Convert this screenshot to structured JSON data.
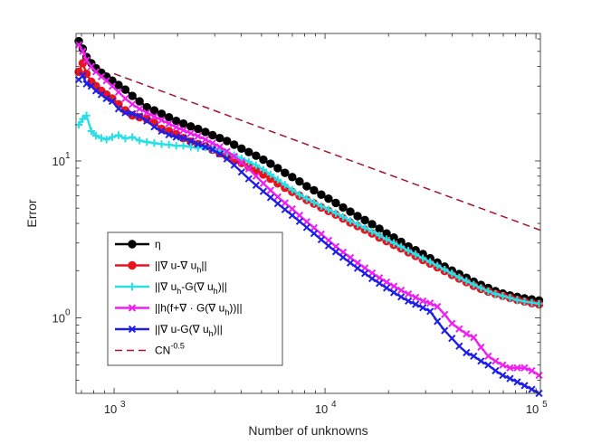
{
  "chart_data": {
    "type": "line",
    "xscale": "log",
    "yscale": "log",
    "xlabel": "Number of unknowns",
    "ylabel": "Error",
    "xlim": [
      660,
      105000
    ],
    "ylim": [
      0.33,
      65
    ],
    "xticks": [
      {
        "value": 1000,
        "base": "10",
        "exp": "3"
      },
      {
        "value": 10000,
        "base": "10",
        "exp": "4"
      },
      {
        "value": 100000,
        "base": "10",
        "exp": "5"
      }
    ],
    "yticks": [
      {
        "value": 1,
        "base": "10",
        "exp": "0"
      },
      {
        "value": 10,
        "base": "10",
        "exp": "1"
      }
    ],
    "series": [
      {
        "name": "η",
        "color": "#000000",
        "marker": "circle",
        "dash": false,
        "x": [
          680,
          710,
          740,
          780,
          820,
          870,
          920,
          980,
          1050,
          1130,
          1220,
          1320,
          1430,
          1550,
          1680,
          1820,
          1970,
          2130,
          2310,
          2500,
          2710,
          2930,
          3170,
          3430,
          3710,
          4020,
          4350,
          4710,
          5100,
          5520,
          5970,
          6460,
          6990,
          7570,
          8190,
          8870,
          9600,
          10390,
          11250,
          12180,
          13180,
          14270,
          15450,
          16720,
          18100,
          19590,
          21200,
          22950,
          24840,
          26890,
          29110,
          31510,
          34110,
          36920,
          39970,
          43270,
          46840,
          50700,
          54880,
          59410,
          64310,
          69610,
          75350,
          81570,
          88300,
          95580,
          103470
        ],
        "y": [
          58,
          52,
          46,
          42,
          39,
          36.5,
          34.5,
          32.5,
          30.5,
          28.5,
          26,
          24,
          22,
          21,
          20,
          19,
          18,
          17.3,
          16.6,
          16,
          15.3,
          14.6,
          14,
          13.4,
          12.7,
          12,
          11.4,
          10.8,
          10.2,
          9.6,
          9,
          8.4,
          7.9,
          7.4,
          6.9,
          6.5,
          6.1,
          5.75,
          5.4,
          5.05,
          4.75,
          4.45,
          4.2,
          3.95,
          3.7,
          3.45,
          3.25,
          3.05,
          2.85,
          2.7,
          2.55,
          2.4,
          2.25,
          2.12,
          2,
          1.9,
          1.8,
          1.7,
          1.62,
          1.55,
          1.48,
          1.43,
          1.39,
          1.36,
          1.33,
          1.31,
          1.29
        ]
      },
      {
        "name": "||∇ u-∇ u_h||",
        "color": "#e8141e",
        "marker": "circle",
        "dash": false,
        "x": [
          680,
          710,
          740,
          780,
          820,
          870,
          920,
          980,
          1050,
          1130,
          1220,
          1320,
          1430,
          1550,
          1680,
          1820,
          1970,
          2130,
          2310,
          2500,
          2710,
          2930,
          3170,
          3430,
          3710,
          4020,
          4350,
          4710,
          5100,
          5520,
          5970,
          6460,
          6990,
          7570,
          8190,
          8870,
          9600,
          10390,
          11250,
          12180,
          13180,
          14270,
          15450,
          16720,
          18100,
          19590,
          21200,
          22950,
          24840,
          26890,
          29110,
          31510,
          34110,
          36920,
          39970,
          43270,
          46840,
          50700,
          54880,
          59410,
          64310,
          69610,
          75350,
          81570,
          88300,
          95580,
          103470
        ],
        "y": [
          37,
          42,
          36,
          32,
          30,
          28,
          26.5,
          25,
          23,
          21,
          19.5,
          19,
          18.5,
          17.5,
          16,
          15.5,
          14.8,
          14,
          13.3,
          12.8,
          12.4,
          11.8,
          11.2,
          10.7,
          10.2,
          9.7,
          9.2,
          8.7,
          8.2,
          7.7,
          7.2,
          6.75,
          6.35,
          6,
          5.65,
          5.35,
          5.05,
          4.8,
          4.55,
          4.3,
          4.05,
          3.85,
          3.65,
          3.45,
          3.25,
          3.08,
          2.92,
          2.77,
          2.62,
          2.48,
          2.34,
          2.22,
          2.1,
          1.99,
          1.88,
          1.78,
          1.69,
          1.6,
          1.53,
          1.47,
          1.42,
          1.38,
          1.34,
          1.3,
          1.27,
          1.24,
          1.22
        ]
      },
      {
        "name": "||∇ u_h-G(∇ u_h)||",
        "color": "#26e0e6",
        "marker": "plus",
        "dash": false,
        "x": [
          680,
          710,
          740,
          780,
          820,
          870,
          920,
          980,
          1050,
          1130,
          1220,
          1320,
          1430,
          1550,
          1680,
          1820,
          1970,
          2130,
          2310,
          2500,
          2710,
          2930,
          3170,
          3430,
          3710,
          4020,
          4350,
          4710,
          5100,
          5520,
          5970,
          6460,
          6990,
          7570,
          8190,
          8870,
          9600,
          10390,
          11250,
          12180,
          13180,
          14270,
          15450,
          16720,
          18100,
          19590,
          21200,
          22950,
          24840,
          26890,
          29110,
          31510,
          34110,
          36920,
          39970,
          43270,
          46840,
          50700,
          54880,
          59410,
          64310,
          69610,
          75350,
          81570,
          88300,
          95580,
          103470
        ],
        "y": [
          17,
          18.5,
          19.5,
          15.5,
          14.5,
          14,
          13.7,
          14.2,
          14.6,
          13.9,
          14.2,
          13.5,
          13.2,
          13,
          12.8,
          12.7,
          12.5,
          12.5,
          12.3,
          12.1,
          12.2,
          11.9,
          11.6,
          11.3,
          10.9,
          10.4,
          9.9,
          9.4,
          8.8,
          8.2,
          7.6,
          7.05,
          6.55,
          6.1,
          5.75,
          5.45,
          5.15,
          4.9,
          4.65,
          4.4,
          4.15,
          3.95,
          3.75,
          3.55,
          3.35,
          3.17,
          3,
          2.84,
          2.68,
          2.54,
          2.4,
          2.27,
          2.15,
          2.03,
          1.92,
          1.81,
          1.72,
          1.63,
          1.55,
          1.48,
          1.42,
          1.38,
          1.34,
          1.3,
          1.27,
          1.25,
          1.23
        ]
      },
      {
        "name": "||h(f+∇ · G(∇ u_h))||",
        "color": "#f01ef0",
        "marker": "x",
        "dash": false,
        "x": [
          680,
          710,
          740,
          780,
          820,
          870,
          920,
          980,
          1050,
          1130,
          1220,
          1320,
          1430,
          1550,
          1680,
          1820,
          1970,
          2130,
          2310,
          2500,
          2710,
          2930,
          3170,
          3430,
          3710,
          4020,
          4350,
          4710,
          5100,
          5520,
          5970,
          6460,
          6990,
          7570,
          8190,
          8870,
          9600,
          10390,
          11250,
          12180,
          13180,
          14270,
          15450,
          16720,
          18100,
          19590,
          21200,
          22950,
          24840,
          26890,
          29110,
          31510,
          34110,
          36920,
          39970,
          43270,
          46840,
          50700,
          54880,
          59410,
          64310,
          69610,
          75350,
          81570,
          88300,
          95580,
          103470
        ],
        "y": [
          55,
          50,
          44,
          40,
          37,
          34.5,
          32.5,
          30,
          27.5,
          25,
          23,
          21.5,
          20.3,
          19.2,
          18.2,
          17.3,
          16.4,
          15.7,
          15,
          14.4,
          13.7,
          13,
          12.3,
          11.5,
          10.7,
          9.8,
          8.9,
          8,
          7.2,
          6.5,
          5.9,
          5.4,
          4.95,
          4.5,
          4.1,
          3.75,
          3.42,
          3.12,
          2.85,
          2.62,
          2.42,
          2.24,
          2.08,
          1.93,
          1.8,
          1.69,
          1.59,
          1.5,
          1.42,
          1.35,
          1.28,
          1.24,
          1.18,
          1.05,
          0.92,
          0.85,
          0.79,
          0.75,
          0.65,
          0.57,
          0.53,
          0.5,
          0.48,
          0.48,
          0.48,
          0.46,
          0.43
        ]
      },
      {
        "name": "||∇ u-G(∇ u_h)||",
        "color": "#1e1ee6",
        "marker": "x",
        "dash": false,
        "x": [
          680,
          710,
          740,
          780,
          820,
          870,
          920,
          980,
          1050,
          1130,
          1220,
          1320,
          1430,
          1550,
          1680,
          1820,
          1970,
          2130,
          2310,
          2500,
          2710,
          2930,
          3170,
          3430,
          3710,
          4020,
          4350,
          4710,
          5100,
          5520,
          5970,
          6460,
          6990,
          7570,
          8190,
          8870,
          9600,
          10390,
          11250,
          12180,
          13180,
          14270,
          15450,
          16720,
          18100,
          19590,
          21200,
          22950,
          24840,
          26890,
          29110,
          31510,
          34110,
          36920,
          39970,
          43270,
          46840,
          50700,
          54880,
          59410,
          64310,
          69610,
          75350,
          81570,
          88300,
          95580,
          103470
        ],
        "y": [
          33,
          35,
          31,
          30,
          28,
          26.5,
          25,
          24,
          21.5,
          20.3,
          20,
          19.3,
          18,
          16.5,
          15.5,
          14.7,
          14.2,
          14,
          13.4,
          12.8,
          12.3,
          11.8,
          11.1,
          10.3,
          9.4,
          8.5,
          7.7,
          7,
          6.4,
          5.85,
          5.35,
          4.9,
          4.5,
          4.12,
          3.77,
          3.45,
          3.15,
          2.88,
          2.64,
          2.43,
          2.24,
          2.07,
          1.92,
          1.78,
          1.66,
          1.55,
          1.45,
          1.36,
          1.28,
          1.22,
          1.16,
          1.1,
          0.95,
          0.83,
          0.74,
          0.66,
          0.6,
          0.57,
          0.53,
          0.5,
          0.46,
          0.43,
          0.41,
          0.39,
          0.37,
          0.35,
          0.33
        ]
      },
      {
        "name": "CN^{-0.5}",
        "color": "#a2142f",
        "marker": "none",
        "dash": true,
        "x": [
          1000,
          105000
        ],
        "y": [
          36,
          3.62
        ]
      }
    ],
    "legend": {
      "position": "lower-left",
      "entries": [
        {
          "base": "η",
          "sub": "",
          "tail": "",
          "sup": ""
        },
        {
          "base": "||∇ u-∇ u",
          "sub": "h",
          "tail": "||",
          "sup": ""
        },
        {
          "base": "||∇ u",
          "sub": "h",
          "tail": "-G(∇ u",
          "sub2": "h",
          "tail2": ")||",
          "sup": ""
        },
        {
          "base": "||h(f+∇ · G(∇ u",
          "sub": "h",
          "tail": "))||",
          "sup": ""
        },
        {
          "base": "||∇ u-G(∇ u",
          "sub": "h",
          "tail": ")||",
          "sup": ""
        },
        {
          "base": "CN",
          "sub": "",
          "tail": "",
          "sup": "-0.5"
        }
      ]
    }
  }
}
